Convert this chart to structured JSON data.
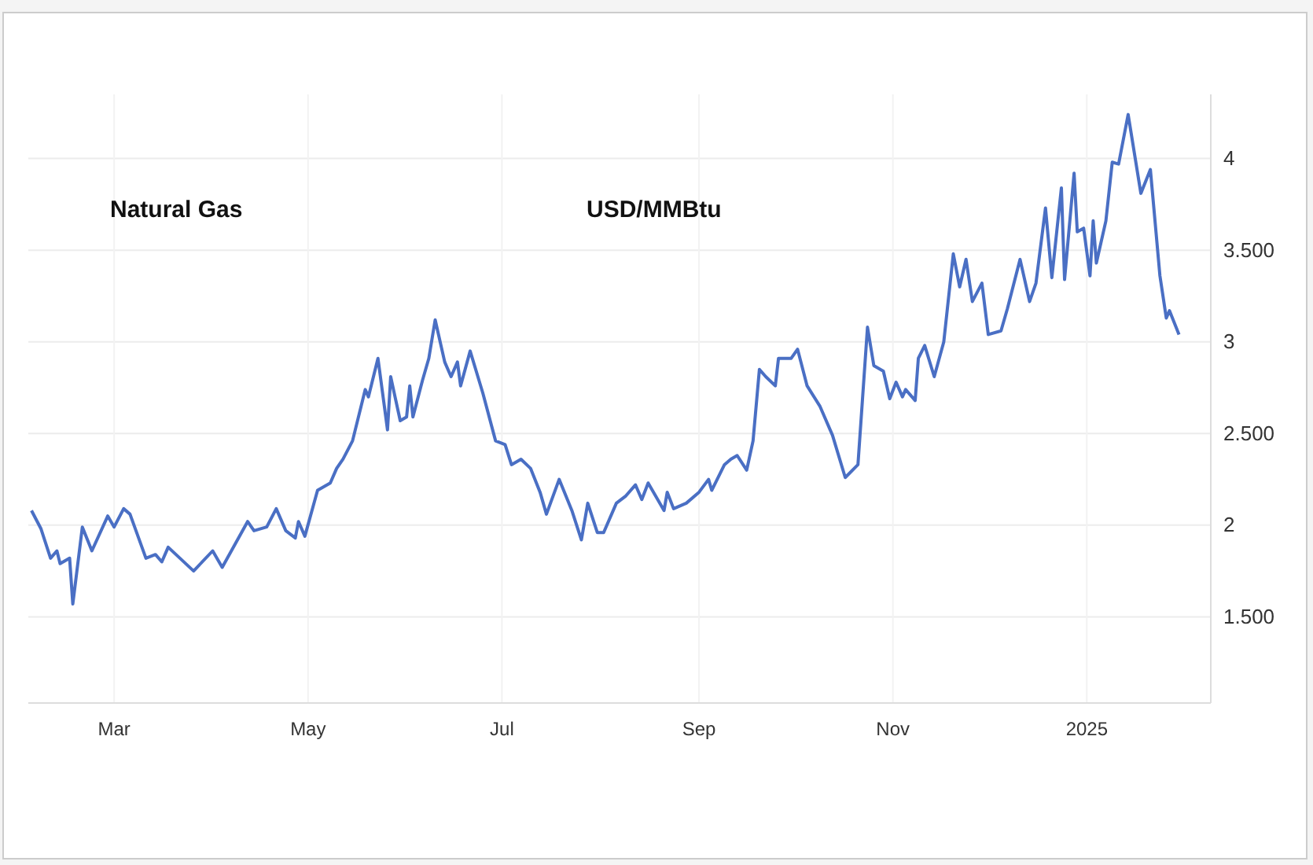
{
  "chart_data": {
    "type": "line",
    "title": "Natural Gas",
    "subtitle": "USD/MMBtu",
    "x": [
      "2024-02-04",
      "2024-02-07",
      "2024-02-10",
      "2024-02-12",
      "2024-02-13",
      "2024-02-16",
      "2024-02-17",
      "2024-02-20",
      "2024-02-23",
      "2024-02-28",
      "2024-03-01",
      "2024-03-04",
      "2024-03-06",
      "2024-03-11",
      "2024-03-14",
      "2024-03-16",
      "2024-03-18",
      "2024-03-26",
      "2024-04-01",
      "2024-04-04",
      "2024-04-12",
      "2024-04-14",
      "2024-04-18",
      "2024-04-21",
      "2024-04-24",
      "2024-04-27",
      "2024-04-28",
      "2024-04-30",
      "2024-05-04",
      "2024-05-08",
      "2024-05-10",
      "2024-05-12",
      "2024-05-15",
      "2024-05-19",
      "2024-05-20",
      "2024-05-23",
      "2024-05-26",
      "2024-05-27",
      "2024-05-30",
      "2024-06-01",
      "2024-06-02",
      "2024-06-03",
      "2024-06-06",
      "2024-06-08",
      "2024-06-10",
      "2024-06-13",
      "2024-06-15",
      "2024-06-17",
      "2024-06-18",
      "2024-06-21",
      "2024-06-25",
      "2024-06-29",
      "2024-07-02",
      "2024-07-04",
      "2024-07-07",
      "2024-07-10",
      "2024-07-13",
      "2024-07-15",
      "2024-07-19",
      "2024-07-23",
      "2024-07-26",
      "2024-07-28",
      "2024-07-31",
      "2024-08-02",
      "2024-08-06",
      "2024-08-09",
      "2024-08-12",
      "2024-08-14",
      "2024-08-16",
      "2024-08-21",
      "2024-08-22",
      "2024-08-24",
      "2024-08-28",
      "2024-09-01",
      "2024-09-04",
      "2024-09-05",
      "2024-09-09",
      "2024-09-11",
      "2024-09-13",
      "2024-09-16",
      "2024-09-18",
      "2024-09-20",
      "2024-09-22",
      "2024-09-25",
      "2024-09-26",
      "2024-09-30",
      "2024-10-02",
      "2024-10-05",
      "2024-10-09",
      "2024-10-13",
      "2024-10-17",
      "2024-10-21",
      "2024-10-24",
      "2024-10-26",
      "2024-10-29",
      "2024-10-31",
      "2024-11-02",
      "2024-11-04",
      "2024-11-05",
      "2024-11-08",
      "2024-11-09",
      "2024-11-11",
      "2024-11-14",
      "2024-11-17",
      "2024-11-20",
      "2024-11-22",
      "2024-11-24",
      "2024-11-26",
      "2024-11-29",
      "2024-12-01",
      "2024-12-05",
      "2024-12-07",
      "2024-12-11",
      "2024-12-14",
      "2024-12-16",
      "2024-12-19",
      "2024-12-21",
      "2024-12-24",
      "2024-12-25",
      "2024-12-28",
      "2024-12-29",
      "2024-12-31",
      "2025-01-02",
      "2025-01-03",
      "2025-01-04",
      "2025-01-07",
      "2025-01-09",
      "2025-01-11",
      "2025-01-14",
      "2025-01-18",
      "2025-01-21",
      "2025-01-24",
      "2025-01-26",
      "2025-01-27",
      "2025-01-30"
    ],
    "series": [
      {
        "color": "#4a6fc4",
        "values": [
          2.08,
          1.98,
          1.82,
          1.86,
          1.79,
          1.82,
          1.57,
          1.99,
          1.86,
          2.05,
          1.99,
          2.09,
          2.06,
          1.82,
          1.84,
          1.8,
          1.88,
          1.75,
          1.86,
          1.77,
          2.02,
          1.97,
          1.99,
          2.09,
          1.97,
          1.93,
          2.02,
          1.94,
          2.19,
          2.23,
          2.31,
          2.36,
          2.46,
          2.74,
          2.7,
          2.91,
          2.52,
          2.81,
          2.57,
          2.59,
          2.76,
          2.59,
          2.79,
          2.91,
          3.12,
          2.89,
          2.81,
          2.89,
          2.76,
          2.95,
          2.72,
          2.46,
          2.44,
          2.33,
          2.36,
          2.31,
          2.18,
          2.06,
          2.25,
          2.08,
          1.92,
          2.12,
          1.96,
          1.96,
          2.12,
          2.16,
          2.22,
          2.14,
          2.23,
          2.08,
          2.18,
          2.09,
          2.12,
          2.18,
          2.25,
          2.19,
          2.33,
          2.36,
          2.38,
          2.3,
          2.46,
          2.85,
          2.81,
          2.76,
          2.91,
          2.91,
          2.96,
          2.76,
          2.65,
          2.49,
          2.26,
          2.33,
          3.08,
          2.87,
          2.84,
          2.69,
          2.78,
          2.7,
          2.74,
          2.68,
          2.91,
          2.98,
          2.81,
          3.0,
          3.48,
          3.3,
          3.45,
          3.22,
          3.32,
          3.04,
          3.06,
          3.18,
          3.45,
          3.22,
          3.32,
          3.73,
          3.35,
          3.84,
          3.34,
          3.92,
          3.6,
          3.62,
          3.36,
          3.66,
          3.43,
          3.66,
          3.98,
          3.97,
          4.24,
          3.81,
          3.94,
          3.36,
          3.13,
          3.17,
          3.04
        ]
      }
    ],
    "xlim": [
      "2024-02-03",
      "2025-02-09"
    ],
    "xticks": [
      {
        "value": "2024-03-01",
        "label": "Mar"
      },
      {
        "value": "2024-05-01",
        "label": "May"
      },
      {
        "value": "2024-07-01",
        "label": "Jul"
      },
      {
        "value": "2024-09-01",
        "label": "Sep"
      },
      {
        "value": "2024-11-01",
        "label": "Nov"
      },
      {
        "value": "2025-01-01",
        "label": "2025"
      }
    ],
    "ylim": [
      1.03,
      4.35
    ],
    "yticks": [
      {
        "value": 1.5,
        "label": "1.500"
      },
      2,
      {
        "value": 2.5,
        "label": "2.500"
      },
      3,
      {
        "value": 3.5,
        "label": "3.500"
      },
      4
    ],
    "grid": true,
    "line_style": "solid",
    "marker": "none"
  }
}
